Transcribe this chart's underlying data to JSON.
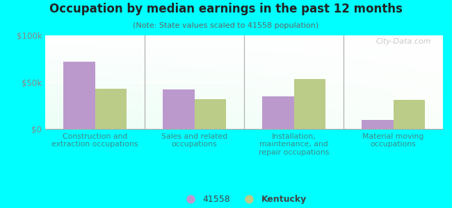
{
  "title": "Occupation by median earnings in the past 12 months",
  "subtitle": "(Note: State values scaled to 41558 population)",
  "categories": [
    "Construction and\nextraction occupations",
    "Sales and related\noccupations",
    "Installation,\nmaintenance, and\nrepair occupations",
    "Material moving\noccupations"
  ],
  "values_41558": [
    72000,
    42000,
    35000,
    10000
  ],
  "values_kentucky": [
    43000,
    32000,
    53000,
    31000
  ],
  "color_41558": "#bb99cc",
  "color_kentucky": "#bbcc88",
  "background_color": "#00ffff",
  "ylim": [
    0,
    100000
  ],
  "yticks": [
    0,
    50000,
    100000
  ],
  "ytick_labels": [
    "$0",
    "$50k",
    "$100k"
  ],
  "legend_labels": [
    "41558",
    "Kentucky"
  ],
  "watermark": "City-Data.com",
  "bar_width": 0.32
}
